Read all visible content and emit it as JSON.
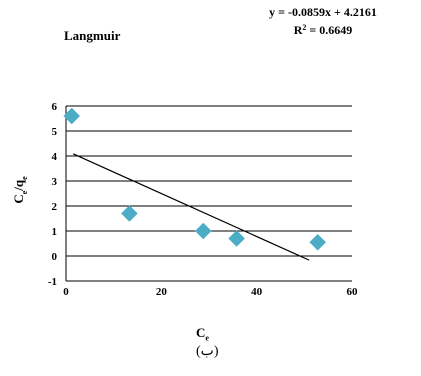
{
  "chart_data": {
    "type": "scatter",
    "title": "Langmuir",
    "equation": "y = -0.0859x + 4.2161",
    "r2_prefix": "R",
    "r2_sup": "2",
    "r2_value": " = 0.6649",
    "xlabel_main": "C",
    "xlabel_sub": "e",
    "ylabel_main": "C",
    "ylabel_sub": "e",
    "ylabel_sep": "/q",
    "ylabel_sub2": "e",
    "xlim": [
      0,
      60
    ],
    "ylim": [
      -1,
      6
    ],
    "x_ticks": [
      "0",
      "20",
      "40",
      "60"
    ],
    "y_ticks": [
      "-1",
      "0",
      "1",
      "2",
      "3",
      "4",
      "5",
      "6"
    ],
    "grid": "horizontal",
    "marker_color": "#4BACC6",
    "trendline_color": "#000000",
    "trendline": {
      "slope": -0.0859,
      "intercept": 4.2161,
      "x_start": 1.5,
      "x_end": 51
    },
    "points": [
      {
        "x": 1.2,
        "y": 5.6
      },
      {
        "x": 13.3,
        "y": 1.7
      },
      {
        "x": 28.8,
        "y": 1.0
      },
      {
        "x": 35.8,
        "y": 0.7
      },
      {
        "x": 52.8,
        "y": 0.55
      }
    ]
  },
  "caption": "(ب)"
}
